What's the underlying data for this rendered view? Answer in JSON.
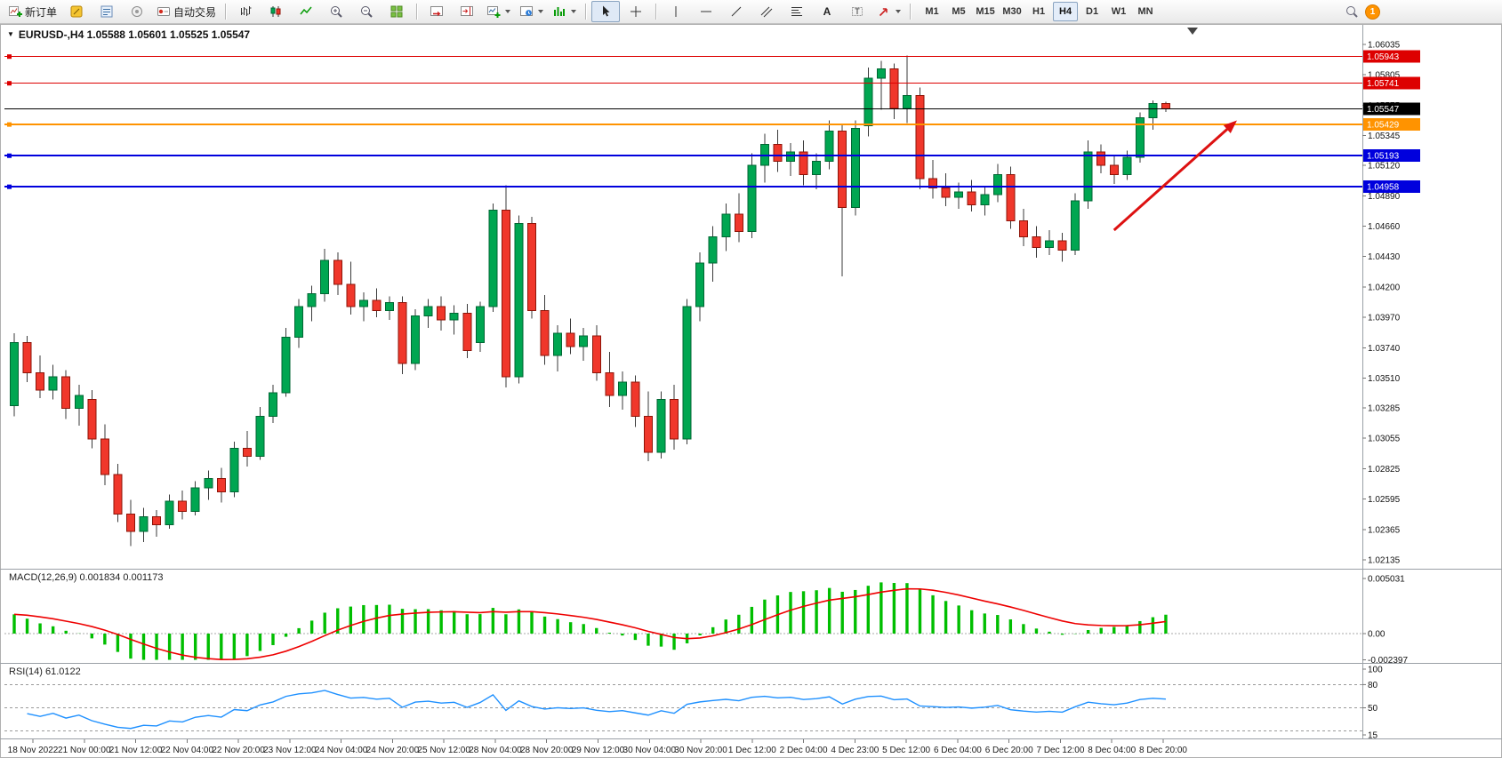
{
  "toolbar": {
    "new_order_label": "新订单",
    "autotrading_label": "自动交易",
    "timeframes": [
      "M1",
      "M5",
      "M15",
      "M30",
      "H1",
      "H4",
      "D1",
      "W1",
      "MN"
    ],
    "active_timeframe": "H4",
    "notification_count": "1"
  },
  "chart": {
    "title": "EURUSD-,H4 1.05588 1.05601 1.05525 1.05547"
  },
  "macd": {
    "header": "MACD(12,26,9) 0.001834 0.001173"
  },
  "rsi": {
    "header": "RSI(14) 61.0122"
  },
  "chart_data": {
    "type": "candlestick",
    "symbol": "EURUSD-",
    "timeframe": "H4",
    "ohlc_header": {
      "open": "1.05588",
      "high": "1.05601",
      "low": "1.05525",
      "close": "1.05547"
    },
    "price_axis_ticks": [
      "1.06035",
      "1.05805",
      "1.05575",
      "1.05345",
      "1.05120",
      "1.04890",
      "1.04660",
      "1.04430",
      "1.04200",
      "1.03970",
      "1.03740",
      "1.03510",
      "1.03285",
      "1.03055",
      "1.02825",
      "1.02595",
      "1.02365",
      "1.02135"
    ],
    "price_axis_range": [
      1.02135,
      1.06035
    ],
    "time_axis_labels": [
      "18 Nov 2022",
      "21 Nov 00:00",
      "21 Nov 12:00",
      "22 Nov 04:00",
      "22 Nov 20:00",
      "23 Nov 12:00",
      "24 Nov 04:00",
      "24 Nov 20:00",
      "25 Nov 12:00",
      "28 Nov 04:00",
      "28 Nov 20:00",
      "29 Nov 12:00",
      "30 Nov 04:00",
      "30 Nov 20:00",
      "1 Dec 12:00",
      "2 Dec 04:00",
      "4 Dec 23:00",
      "5 Dec 12:00",
      "6 Dec 04:00",
      "6 Dec 20:00",
      "7 Dec 12:00",
      "8 Dec 04:00",
      "8 Dec 20:00"
    ],
    "bull_color": "#00A651",
    "bear_color": "#F0372B",
    "candles": [
      [
        1.033,
        1.0385,
        1.0322,
        1.0378
      ],
      [
        1.0378,
        1.0383,
        1.0348,
        1.0355
      ],
      [
        1.0355,
        1.0368,
        1.0336,
        1.0342
      ],
      [
        1.0342,
        1.0361,
        1.0335,
        1.0352
      ],
      [
        1.0352,
        1.0357,
        1.032,
        1.0328
      ],
      [
        1.0328,
        1.0346,
        1.0315,
        1.0338
      ],
      [
        1.0335,
        1.0342,
        1.0298,
        1.0305
      ],
      [
        1.0305,
        1.0316,
        1.027,
        1.0278
      ],
      [
        1.0278,
        1.0286,
        1.0242,
        1.0248
      ],
      [
        1.0248,
        1.0259,
        1.0224,
        1.0235
      ],
      [
        1.0235,
        1.0253,
        1.0227,
        1.0246
      ],
      [
        1.0246,
        1.0251,
        1.0231,
        1.024
      ],
      [
        1.024,
        1.0263,
        1.0237,
        1.0258
      ],
      [
        1.0258,
        1.0266,
        1.0244,
        1.025
      ],
      [
        1.025,
        1.0273,
        1.0247,
        1.0268
      ],
      [
        1.0268,
        1.0281,
        1.0259,
        1.0275
      ],
      [
        1.0275,
        1.0283,
        1.0257,
        1.0265
      ],
      [
        1.0265,
        1.0303,
        1.0261,
        1.0298
      ],
      [
        1.0298,
        1.0311,
        1.0284,
        1.0292
      ],
      [
        1.0292,
        1.0329,
        1.0289,
        1.0322
      ],
      [
        1.0322,
        1.0346,
        1.0317,
        1.034
      ],
      [
        1.034,
        1.0389,
        1.0337,
        1.0382
      ],
      [
        1.0382,
        1.0411,
        1.0374,
        1.0405
      ],
      [
        1.0405,
        1.0421,
        1.0394,
        1.0415
      ],
      [
        1.0415,
        1.0449,
        1.0409,
        1.044
      ],
      [
        1.044,
        1.0446,
        1.0414,
        1.0422
      ],
      [
        1.0422,
        1.0439,
        1.0399,
        1.0405
      ],
      [
        1.0405,
        1.0416,
        1.0394,
        1.041
      ],
      [
        1.041,
        1.0419,
        1.0397,
        1.0402
      ],
      [
        1.0402,
        1.0413,
        1.0395,
        1.0408
      ],
      [
        1.0408,
        1.0413,
        1.0354,
        1.0362
      ],
      [
        1.0362,
        1.0403,
        1.0357,
        1.0398
      ],
      [
        1.0398,
        1.0411,
        1.0389,
        1.0405
      ],
      [
        1.0405,
        1.0413,
        1.0387,
        1.0395
      ],
      [
        1.0395,
        1.0406,
        1.0384,
        1.04
      ],
      [
        1.04,
        1.0407,
        1.0366,
        1.0372
      ],
      [
        1.0378,
        1.0409,
        1.0371,
        1.0405
      ],
      [
        1.0405,
        1.0483,
        1.0401,
        1.0478
      ],
      [
        1.0478,
        1.0497,
        1.0344,
        1.0352
      ],
      [
        1.0352,
        1.0474,
        1.0347,
        1.0468
      ],
      [
        1.0468,
        1.0473,
        1.0396,
        1.0402
      ],
      [
        1.0402,
        1.0414,
        1.0361,
        1.0368
      ],
      [
        1.0368,
        1.0391,
        1.0356,
        1.0385
      ],
      [
        1.0385,
        1.0396,
        1.0369,
        1.0375
      ],
      [
        1.0375,
        1.0389,
        1.0364,
        1.0383
      ],
      [
        1.0383,
        1.0391,
        1.0349,
        1.0355
      ],
      [
        1.0355,
        1.0371,
        1.0329,
        1.0338
      ],
      [
        1.0338,
        1.0356,
        1.0327,
        1.0348
      ],
      [
        1.0348,
        1.0353,
        1.0314,
        1.0322
      ],
      [
        1.0322,
        1.0341,
        1.0288,
        1.0295
      ],
      [
        1.0295,
        1.0341,
        1.029,
        1.0335
      ],
      [
        1.0335,
        1.0346,
        1.0297,
        1.0305
      ],
      [
        1.0305,
        1.0411,
        1.0301,
        1.0405
      ],
      [
        1.0405,
        1.0446,
        1.0394,
        1.0438
      ],
      [
        1.0438,
        1.0466,
        1.0424,
        1.0458
      ],
      [
        1.0458,
        1.0483,
        1.0447,
        1.0475
      ],
      [
        1.0475,
        1.0491,
        1.0454,
        1.0462
      ],
      [
        1.0462,
        1.0521,
        1.0457,
        1.0512
      ],
      [
        1.0512,
        1.0536,
        1.0499,
        1.0528
      ],
      [
        1.0528,
        1.0539,
        1.0507,
        1.0515
      ],
      [
        1.0515,
        1.0529,
        1.0504,
        1.0522
      ],
      [
        1.0522,
        1.0531,
        1.0497,
        1.0505
      ],
      [
        1.0505,
        1.0521,
        1.0494,
        1.0515
      ],
      [
        1.0515,
        1.0546,
        1.0509,
        1.0538
      ],
      [
        1.0538,
        1.0543,
        1.0428,
        1.048
      ],
      [
        1.048,
        1.0546,
        1.0474,
        1.054
      ],
      [
        1.0542,
        1.0586,
        1.0534,
        1.0578
      ],
      [
        1.0578,
        1.0591,
        1.0554,
        1.0585
      ],
      [
        1.0585,
        1.0589,
        1.0547,
        1.0555
      ],
      [
        1.0555,
        1.0595,
        1.0544,
        1.0565
      ],
      [
        1.0565,
        1.0571,
        1.0494,
        1.0502
      ],
      [
        1.0502,
        1.0516,
        1.0487,
        1.0495
      ],
      [
        1.0495,
        1.0506,
        1.0481,
        1.0488
      ],
      [
        1.0488,
        1.0499,
        1.0479,
        1.0492
      ],
      [
        1.0492,
        1.0501,
        1.0477,
        1.0482
      ],
      [
        1.0482,
        1.0496,
        1.0474,
        1.049
      ],
      [
        1.049,
        1.0513,
        1.0484,
        1.0505
      ],
      [
        1.0505,
        1.0511,
        1.0464,
        1.047
      ],
      [
        1.047,
        1.0479,
        1.0451,
        1.0458
      ],
      [
        1.0458,
        1.0466,
        1.0442,
        1.045
      ],
      [
        1.045,
        1.0463,
        1.0444,
        1.0455
      ],
      [
        1.0455,
        1.0461,
        1.0439,
        1.0448
      ],
      [
        1.0448,
        1.0491,
        1.0444,
        1.0485
      ],
      [
        1.0485,
        1.0531,
        1.0479,
        1.0522
      ],
      [
        1.0522,
        1.0528,
        1.0506,
        1.0512
      ],
      [
        1.0512,
        1.0519,
        1.0498,
        1.0505
      ],
      [
        1.0505,
        1.0523,
        1.0501,
        1.0518
      ],
      [
        1.0518,
        1.0552,
        1.0514,
        1.0548
      ],
      [
        1.0548,
        1.0561,
        1.0539,
        1.05588
      ],
      [
        1.05588,
        1.05601,
        1.05525,
        1.05547
      ]
    ],
    "horizontal_lines": [
      {
        "price": 1.05943,
        "label": "1.05943",
        "color": "#DD0000",
        "width": 1
      },
      {
        "price": 1.05741,
        "label": "1.05741",
        "color": "#DD0000",
        "width": 1
      },
      {
        "price": 1.05429,
        "label": "1.05429",
        "color": "#FF9300",
        "width": 2
      },
      {
        "price": 1.05193,
        "label": "1.05193",
        "color": "#0000DD",
        "width": 2
      },
      {
        "price": 1.04958,
        "label": "1.04958",
        "color": "#0000DD",
        "width": 2
      }
    ],
    "current_price_line": {
      "price": 1.05547,
      "label": "1.05547",
      "color": "#000000"
    },
    "indicators": [
      {
        "name": "MACD",
        "params": [
          12,
          26,
          9
        ],
        "display_values": [
          "0.001834",
          "0.001173"
        ],
        "axis_ticks": [
          "0.005031",
          "0.00",
          "-0.002397"
        ],
        "range": [
          -0.002397,
          0.005031
        ],
        "histogram_color": "#00BE00",
        "signal_color": "#EE0000"
      },
      {
        "name": "RSI",
        "params": [
          14
        ],
        "display_value": "61.0122",
        "axis_ticks": [
          "100",
          "80",
          "50",
          "15"
        ],
        "levels": [
          80,
          50,
          20
        ],
        "range": [
          15,
          100
        ],
        "line_color": "#1E90FF"
      }
    ],
    "annotations": [
      {
        "type": "arrow",
        "color": "#DD1111",
        "from_bar": 85,
        "from_price": 1.0463,
        "to_bar": 94.5,
        "to_price": 1.0546
      }
    ]
  }
}
